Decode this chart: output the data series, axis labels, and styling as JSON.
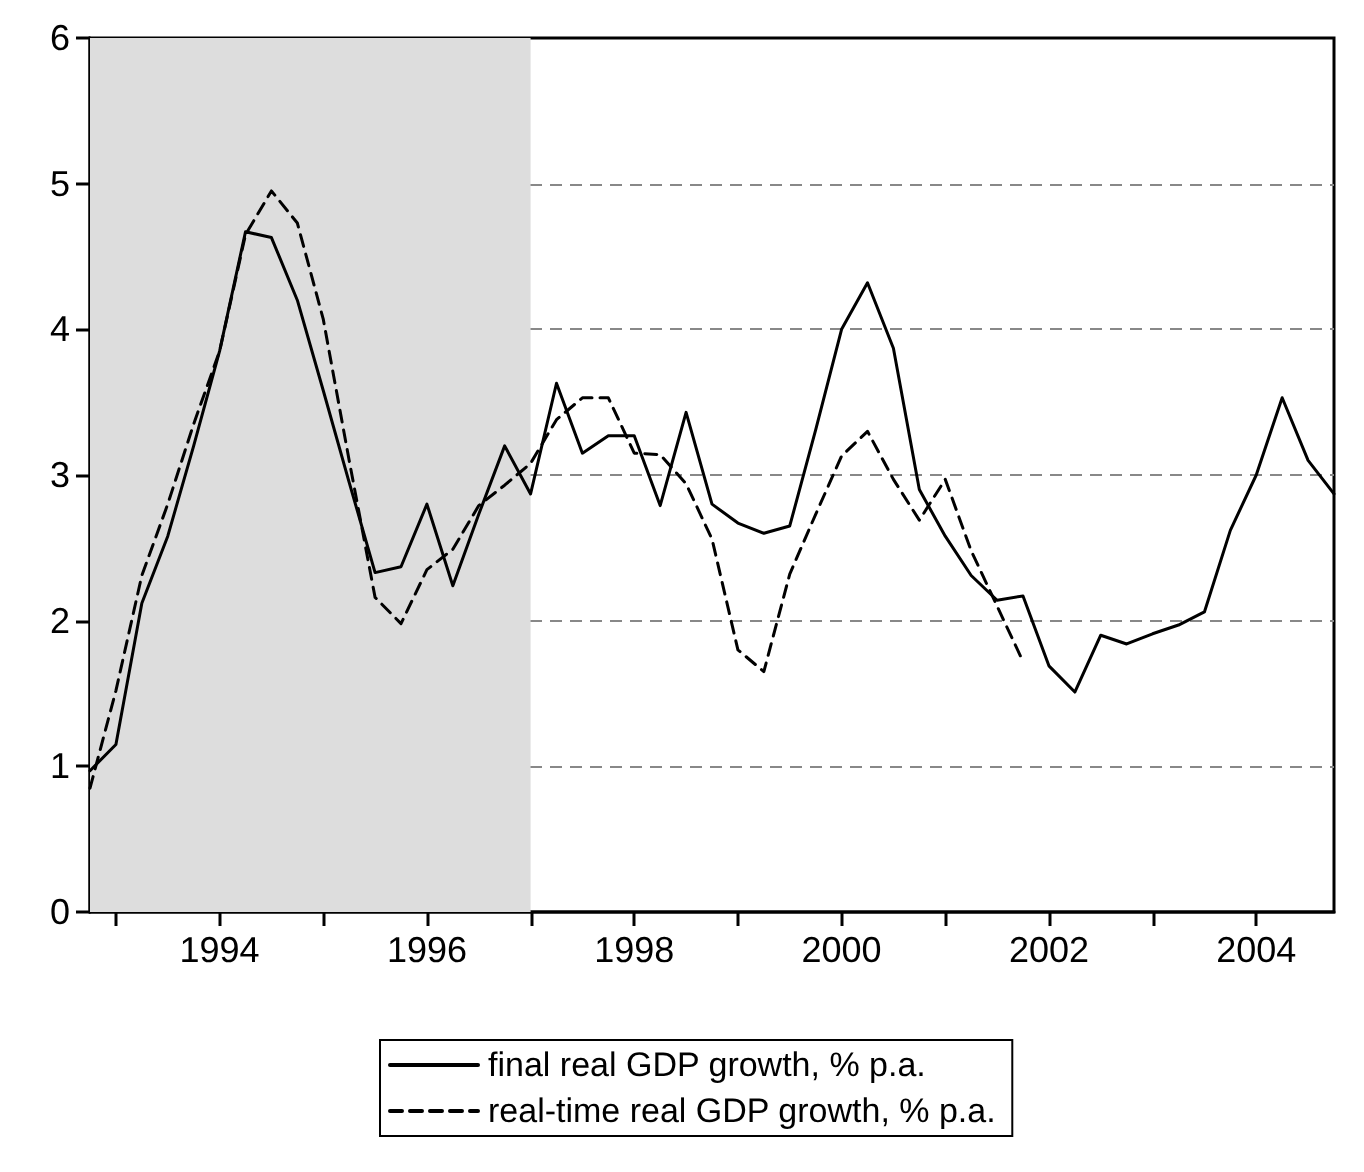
{
  "chart_data": {
    "type": "line",
    "x": [
      1992.75,
      1993,
      1993.25,
      1993.5,
      1993.75,
      1994,
      1994.25,
      1994.5,
      1994.75,
      1995,
      1995.25,
      1995.5,
      1995.75,
      1996,
      1996.25,
      1996.5,
      1996.75,
      1997,
      1997.25,
      1997.5,
      1997.75,
      1998,
      1998.25,
      1998.5,
      1998.75,
      1999,
      1999.25,
      1999.5,
      1999.75,
      2000,
      2000.25,
      2000.5,
      2000.75,
      2001,
      2001.25,
      2001.5,
      2001.75,
      2002,
      2002.25,
      2002.5,
      2002.75,
      2003,
      2003.25,
      2003.5,
      2003.75,
      2004,
      2004.25,
      2004.5,
      2004.75
    ],
    "series": [
      {
        "name": "final real GDP growth, % p.a.",
        "color": "#000000",
        "line_style": "solid",
        "values": [
          0.97,
          1.15,
          2.12,
          2.58,
          3.2,
          3.85,
          4.67,
          4.63,
          4.2,
          3.58,
          2.95,
          2.33,
          2.37,
          2.8,
          2.24,
          2.73,
          3.2,
          2.87,
          3.63,
          3.15,
          3.27,
          3.27,
          2.79,
          3.43,
          2.8,
          2.67,
          2.6,
          2.65,
          3.31,
          4.0,
          4.32,
          3.87,
          2.9,
          2.58,
          2.31,
          2.14,
          2.17,
          1.69,
          1.51,
          1.9,
          1.84,
          1.91,
          1.97,
          2.06,
          2.62,
          3.0,
          3.53,
          3.1,
          2.87
        ]
      },
      {
        "name": "real-time real GDP growth, % p.a.",
        "color": "#000000",
        "line_style": "dashed",
        "values": [
          0.85,
          1.52,
          2.31,
          2.8,
          3.35,
          3.85,
          4.65,
          4.95,
          4.73,
          4.07,
          3.1,
          2.16,
          1.98,
          2.35,
          2.49,
          2.79,
          2.93,
          3.08,
          3.38,
          3.53,
          3.53,
          3.15,
          3.14,
          2.94,
          2.56,
          1.8,
          1.65,
          2.32,
          2.73,
          3.13,
          3.3,
          2.97,
          2.69,
          2.97,
          2.48,
          2.1,
          1.72,
          null,
          null,
          null,
          null,
          null,
          null,
          null,
          null,
          null,
          null,
          null,
          null
        ]
      }
    ],
    "xlim": [
      1992.75,
      2004.75
    ],
    "xticks": [
      {
        "value": 1993,
        "label": null
      },
      {
        "value": 1994,
        "label": "1994"
      },
      {
        "value": 1995,
        "label": null
      },
      {
        "value": 1996,
        "label": "1996"
      },
      {
        "value": 1997,
        "label": null
      },
      {
        "value": 1998,
        "label": "1998"
      },
      {
        "value": 1999,
        "label": null
      },
      {
        "value": 2000,
        "label": "2000"
      },
      {
        "value": 2001,
        "label": null
      },
      {
        "value": 2002,
        "label": "2002"
      },
      {
        "value": 2003,
        "label": null
      },
      {
        "value": 2004,
        "label": "2004"
      }
    ],
    "ylim": [
      0,
      6
    ],
    "yticks": [
      0,
      1,
      2,
      3,
      4,
      5,
      6
    ],
    "bands": [
      {
        "axis": "x",
        "from": 1992.75,
        "to": 1997,
        "color": "#dddddd"
      }
    ],
    "grid": "y",
    "legend": "bottom",
    "marker": "none"
  }
}
